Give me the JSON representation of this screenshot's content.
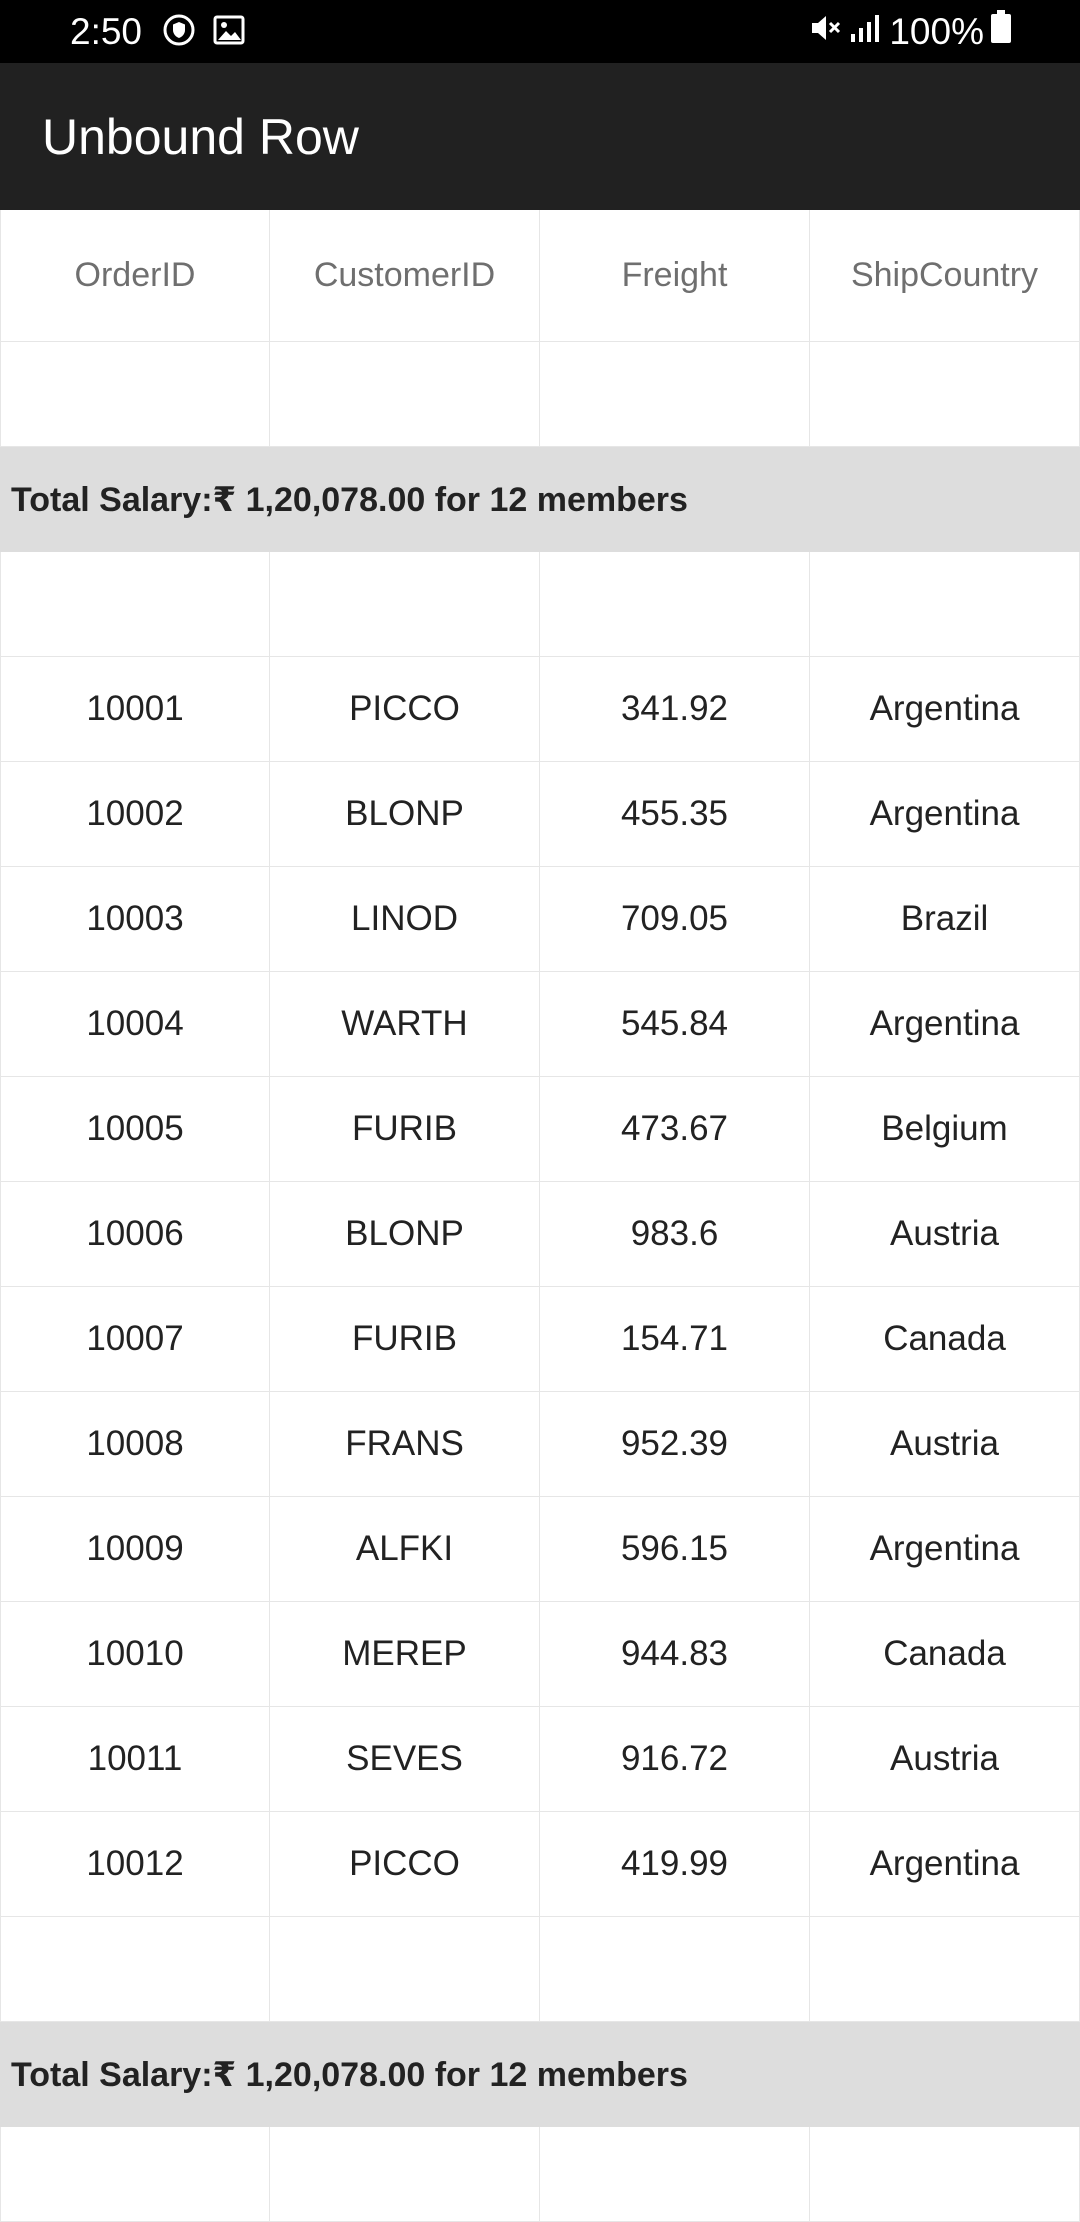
{
  "status_bar": {
    "time": "2:50",
    "icons_left": [
      "shield-icon",
      "image-icon"
    ],
    "icons_right": [
      "mute-icon",
      "signal-icon"
    ],
    "battery_text": "100%"
  },
  "app_bar": {
    "title": "Unbound Row"
  },
  "grid": {
    "columns": [
      "OrderID",
      "CustomerID",
      "Freight",
      "ShipCountry"
    ],
    "summary_text": "Total Salary:₹ 1,20,078.00 for 12 members",
    "rows": [
      [
        "10001",
        "PICCO",
        "341.92",
        "Argentina"
      ],
      [
        "10002",
        "BLONP",
        "455.35",
        "Argentina"
      ],
      [
        "10003",
        "LINOD",
        "709.05",
        "Brazil"
      ],
      [
        "10004",
        "WARTH",
        "545.84",
        "Argentina"
      ],
      [
        "10005",
        "FURIB",
        "473.67",
        "Belgium"
      ],
      [
        "10006",
        "BLONP",
        "983.6",
        "Austria"
      ],
      [
        "10007",
        "FURIB",
        "154.71",
        "Canada"
      ],
      [
        "10008",
        "FRANS",
        "952.39",
        "Austria"
      ],
      [
        "10009",
        "ALFKI",
        "596.15",
        "Argentina"
      ],
      [
        "10010",
        "MEREP",
        "944.83",
        "Canada"
      ],
      [
        "10011",
        "SEVES",
        "916.72",
        "Austria"
      ],
      [
        "10012",
        "PICCO",
        "419.99",
        "Argentina"
      ]
    ]
  }
}
